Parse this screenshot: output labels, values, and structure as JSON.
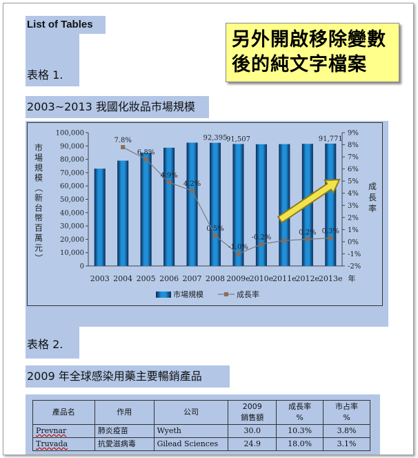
{
  "document": {
    "heading": "List of Tables",
    "callout_lines": [
      "另外開啟移除變數",
      "後的純文字檔案"
    ],
    "tables": [
      {
        "label": "表格  1.",
        "title": "2003~2013 我國化妝品市場規模"
      },
      {
        "label": "表格  2.",
        "title": "2009 年全球感染用藥主要暢銷產品"
      }
    ]
  },
  "chart_data": {
    "type": "bar",
    "categories": [
      "2003",
      "2004",
      "2005",
      "2006",
      "2007",
      "2008",
      "2009e",
      "2010e",
      "2011e",
      "2012e",
      "2013e"
    ],
    "x_unit": "年",
    "series": [
      {
        "name": "市場規模",
        "kind": "bar",
        "axis": "left",
        "values": [
          73000,
          79000,
          85000,
          88700,
          92500,
          92395,
          91507,
          91300,
          91400,
          91600,
          91771
        ],
        "labels": [
          "",
          "",
          "",
          "",
          "",
          "92,395",
          "91,507",
          "",
          "",
          "",
          "91,771"
        ]
      },
      {
        "name": "成長率",
        "kind": "line",
        "axis": "right",
        "unit": "%",
        "values": [
          null,
          7.8,
          6.8,
          4.9,
          4.2,
          0.5,
          -1.0,
          -0.2,
          0.1,
          0.2,
          0.3
        ],
        "labels": [
          "",
          "7.8%",
          "6.8%",
          "4.9%",
          "4.2%",
          "0.5%",
          "-1.0%",
          "-0.2%",
          "",
          "0.2%",
          "0.3%"
        ]
      }
    ],
    "ylabel_left": "市場規模（新台幣百萬元）",
    "ylabel_right": "成長率",
    "ylim_left": [
      0,
      100000
    ],
    "yticks_left": [
      "0",
      "10,000",
      "20,000",
      "30,000",
      "40,000",
      "50,000",
      "60,000",
      "70,000",
      "80,000",
      "90,000",
      "100,000"
    ],
    "ylim_right": [
      -2,
      9
    ],
    "yticks_right": [
      "-2%",
      "-1%",
      "0%",
      "1%",
      "2%",
      "3%",
      "4%",
      "5%",
      "6%",
      "7%",
      "8%",
      "9%"
    ],
    "legend_position": "bottom-center",
    "colors": {
      "bar": "#1f8fd8",
      "bar_dark": "#0b2a55",
      "line": "#7a7a7a",
      "marker": "#8a6d5a",
      "arrow": "#8a7a20"
    }
  },
  "table2": {
    "headers": [
      "產品名",
      "作用",
      "公司",
      "2009\n銷售額",
      "成長率\n%",
      "市占率\n%"
    ],
    "rows": [
      [
        "Prevnar",
        "肺炎疫苗",
        "Wyeth",
        "30.0",
        "10.3%",
        "3.8%"
      ],
      [
        "Truvada",
        "抗愛滋病毒",
        "Gilead Sciences",
        "24.9",
        "18.0%",
        "3.1%"
      ]
    ]
  }
}
